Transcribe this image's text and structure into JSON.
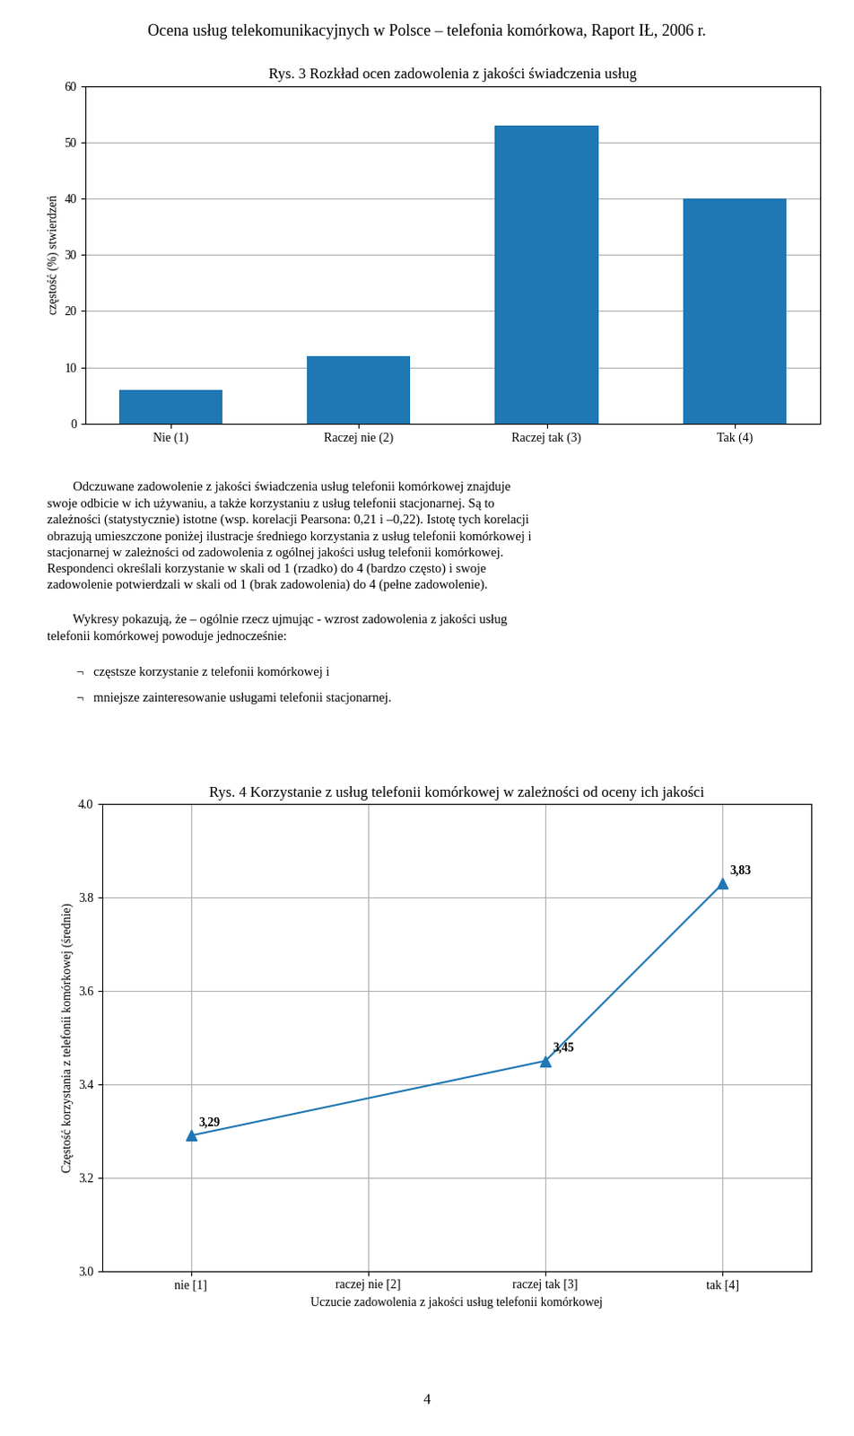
{
  "title": "Ocena usług telekomunikacyjnych w Polsce – telefonia komórkowa, Raport IŁ, 2006 r.",
  "annotations": [
    "        Odczuwane zadowolenie z jakości świadczenia usług telefonii komórkowej znajduje\nswoje odbicie w ich używaniu, a także korzystaniu z usług telefonii stacjonarnej. Są to\nzależności (statystycznie) istotne (wsp. korelacji Pearsona: 0,21 i –0,22). Istotę tych korelacji\nobrazują umieszczone poniżej ilustracje średniego korzystania z usług telefonii komórkowej i\nstacjonarnej w zależności od zadowolenia z ogólnej jakości usług telefonii komórkowej.\nRespondenci określali korzystanie w skali od 1 (rzadko) do 4 (bardzo często) i swoje\nzadowolenie potwierdzali w skali od 1 (brak zadowolenia) do 4 (pełne zadowolenie).",
    "        Wykresy pokazują, że – ogólnie rzecz ujmując - wzrost zadowolenia z jakości usług\ntelefonii komórkowej powoduje jednocześnie:",
    "¬   częstsze korzystanie z telefonii komórkowej i",
    "¬   mniejsze zainteresowanie usługami telefonii stacjonarnej.",
    "4"
  ],
  "chart_data": [
    {
      "type": "bar",
      "title": "Rys. 3 Rozkład ocen zadowolenia z jakości świadczenia usług",
      "categories": [
        "Nie (1)",
        "Raczej nie (2)",
        "Raczej tak (3)",
        "Tak (4)"
      ],
      "values": [
        6,
        12,
        53,
        40
      ],
      "y_label": "częstość (%) stwierdzeń",
      "ylim": [
        0,
        60
      ],
      "yticks": [
        0,
        10,
        20,
        30,
        40,
        50,
        60
      ],
      "grid": true
    },
    {
      "type": "line",
      "title": "Rys. 4 Korzystanie z usług telefonii komórkowej w zależności od oceny ich jakości",
      "categories": [
        "nie [1]",
        "raczej nie [2]",
        "raczej tak [3]",
        "tak [4]"
      ],
      "values": [
        3.29,
        null,
        3.45,
        3.83
      ],
      "value_labels": [
        "3,29",
        null,
        "3,45",
        "3,83"
      ],
      "data_labels": true,
      "marker": "triangle_up",
      "x_label": "Uczucie zadowolenia z jakości usług telefonii komórkowej",
      "y_label": "Częstość korzystania z telefonii komórkowej (średnie)",
      "ylim": [
        3.0,
        4.0
      ],
      "yticks": [
        3.0,
        3.2,
        3.4,
        3.6,
        3.8,
        4.0
      ],
      "grid": true
    }
  ]
}
